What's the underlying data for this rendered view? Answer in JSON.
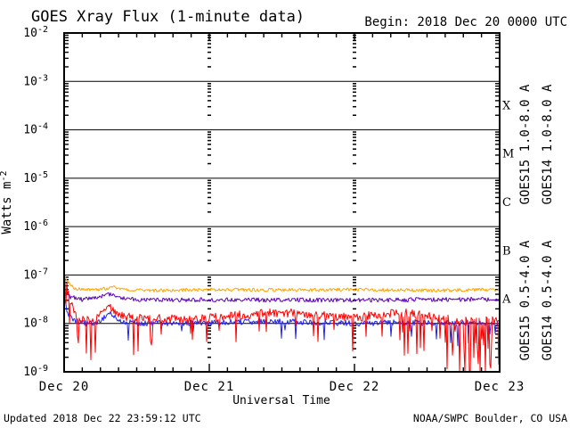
{
  "footer": {
    "updated": "Updated 2018 Dec 22 23:59:12 UTC",
    "credit": "NOAA/SWPC Boulder, CO USA"
  },
  "chart_data": {
    "type": "line",
    "title": "GOES Xray Flux (1-minute data)",
    "begin_label": "Begin: 2018 Dec 20 0000 UTC",
    "xlabel": "Universal Time",
    "ylabel_base": "Watts m",
    "ylabel_exp": "-2",
    "x_hours_range": [
      0,
      72
    ],
    "x_minor_tick_hours": 3,
    "x_day_ticks": [
      {
        "hour": 0,
        "label": "Dec 20"
      },
      {
        "hour": 24,
        "label": "Dec 21"
      },
      {
        "hour": 48,
        "label": "Dec 22"
      },
      {
        "hour": 72,
        "label": "Dec 23"
      }
    ],
    "grid_day_lines_hours": [
      24,
      48
    ],
    "y_log_min": -9,
    "y_log_max": -2,
    "y_tick_exponents": [
      -2,
      -3,
      -4,
      -5,
      -6,
      -7,
      -8,
      -9
    ],
    "flux_classes": [
      {
        "label": "X",
        "log_center": -3.5
      },
      {
        "label": "M",
        "log_center": -4.5
      },
      {
        "label": "C",
        "log_center": -5.5
      },
      {
        "label": "B",
        "log_center": -6.5
      },
      {
        "label": "A",
        "log_center": -7.5
      }
    ],
    "grid_color": "#000000",
    "noise_seed": 20181222,
    "series": [
      {
        "name": "GOES15 1.0-8.0 A",
        "color": "#ff0000",
        "draw_order": 3,
        "legend": {
          "row": 0,
          "col": 0
        },
        "noise_log": 0.09,
        "anchors": [
          [
            0,
            -7.0
          ],
          [
            0.4,
            -7.22
          ],
          [
            1,
            -7.55
          ],
          [
            2,
            -7.85
          ],
          [
            3,
            -7.93
          ],
          [
            5,
            -7.95
          ],
          [
            6,
            -7.82
          ],
          [
            7.5,
            -7.65
          ],
          [
            8.5,
            -7.75
          ],
          [
            10,
            -7.85
          ],
          [
            12,
            -7.87
          ],
          [
            16,
            -7.9
          ],
          [
            20,
            -7.92
          ],
          [
            24,
            -7.89
          ],
          [
            28,
            -7.84
          ],
          [
            32,
            -7.8
          ],
          [
            36,
            -7.78
          ],
          [
            40,
            -7.8
          ],
          [
            44,
            -7.85
          ],
          [
            48,
            -7.88
          ],
          [
            52,
            -7.82
          ],
          [
            56,
            -7.78
          ],
          [
            60,
            -7.85
          ],
          [
            64,
            -7.92
          ],
          [
            68,
            -7.96
          ],
          [
            72,
            -7.92
          ]
        ],
        "spikes": {
          "base_prob": 0.04,
          "min_depth": 0.25,
          "default_max_depth": 0.6,
          "windows": [
            {
              "from": 3,
              "to": 6,
              "prob": 0.12,
              "max_depth": 0.8
            },
            {
              "from": 10,
              "to": 26,
              "prob": 0.09,
              "max_depth": 0.75
            },
            {
              "from": 44,
              "to": 50,
              "prob": 0.12,
              "max_depth": 0.8
            },
            {
              "from": 54,
              "to": 66,
              "prob": 0.22,
              "max_depth": 1.1
            },
            {
              "from": 66,
              "to": 72,
              "prob": 0.35,
              "max_depth": 1.3
            }
          ]
        }
      },
      {
        "name": "GOES14 1.0-8.0 A",
        "color": "#ffa500",
        "draw_order": 0,
        "legend": {
          "row": 0,
          "col": 1
        },
        "noise_log": 0.035,
        "anchors": [
          [
            0,
            -7.0
          ],
          [
            0.5,
            -7.12
          ],
          [
            1.5,
            -7.26
          ],
          [
            3,
            -7.31
          ],
          [
            6,
            -7.3
          ],
          [
            8,
            -7.25
          ],
          [
            10,
            -7.3
          ],
          [
            16,
            -7.32
          ],
          [
            24,
            -7.3
          ],
          [
            36,
            -7.31
          ],
          [
            48,
            -7.3
          ],
          [
            60,
            -7.32
          ],
          [
            72,
            -7.3
          ]
        ],
        "spikes": null
      },
      {
        "name": "GOES15 0.5-4.0 A",
        "color": "#2222ee",
        "draw_order": 2,
        "legend": {
          "row": 1,
          "col": 0
        },
        "noise_log": 0.06,
        "anchors": [
          [
            0,
            -7.5
          ],
          [
            0.5,
            -7.78
          ],
          [
            1.5,
            -7.93
          ],
          [
            3,
            -8.0
          ],
          [
            5,
            -8.0
          ],
          [
            6.5,
            -7.9
          ],
          [
            7.5,
            -7.8
          ],
          [
            9,
            -7.95
          ],
          [
            12,
            -8.0
          ],
          [
            24,
            -7.99
          ],
          [
            32,
            -7.96
          ],
          [
            40,
            -7.97
          ],
          [
            48,
            -8.0
          ],
          [
            56,
            -7.98
          ],
          [
            64,
            -8.0
          ],
          [
            72,
            -8.0
          ]
        ],
        "spikes": {
          "base_prob": 0.025,
          "min_depth": 0.15,
          "default_max_depth": 0.35,
          "windows": [
            {
              "from": 54,
              "to": 72,
              "prob": 0.07,
              "max_depth": 0.5
            }
          ]
        }
      },
      {
        "name": "GOES14 0.5-4.0 A",
        "color": "#5a00b4",
        "draw_order": 1,
        "legend": {
          "row": 1,
          "col": 1
        },
        "noise_log": 0.045,
        "anchors": [
          [
            0,
            -7.33
          ],
          [
            1,
            -7.45
          ],
          [
            3,
            -7.51
          ],
          [
            6,
            -7.45
          ],
          [
            8,
            -7.39
          ],
          [
            10,
            -7.48
          ],
          [
            14,
            -7.52
          ],
          [
            24,
            -7.51
          ],
          [
            48,
            -7.52
          ],
          [
            72,
            -7.5
          ]
        ],
        "spikes": null
      }
    ]
  }
}
